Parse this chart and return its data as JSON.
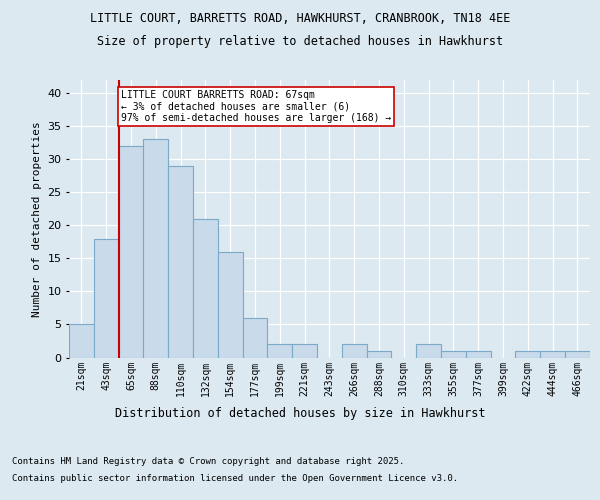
{
  "title1": "LITTLE COURT, BARRETTS ROAD, HAWKHURST, CRANBROOK, TN18 4EE",
  "title2": "Size of property relative to detached houses in Hawkhurst",
  "xlabel": "Distribution of detached houses by size in Hawkhurst",
  "ylabel": "Number of detached properties",
  "categories": [
    "21sqm",
    "43sqm",
    "65sqm",
    "88sqm",
    "110sqm",
    "132sqm",
    "154sqm",
    "177sqm",
    "199sqm",
    "221sqm",
    "243sqm",
    "266sqm",
    "288sqm",
    "310sqm",
    "333sqm",
    "355sqm",
    "377sqm",
    "399sqm",
    "422sqm",
    "444sqm",
    "466sqm"
  ],
  "values": [
    5,
    18,
    32,
    33,
    29,
    21,
    16,
    6,
    2,
    2,
    0,
    2,
    1,
    0,
    2,
    1,
    1,
    0,
    1,
    1,
    1
  ],
  "bar_color": "#c9daea",
  "bar_edge_color": "#7aaac8",
  "marker_line_color": "#cc0000",
  "annotation_box_color": "#ffffff",
  "annotation_box_edge": "#cc0000",
  "marker_label_line1": "LITTLE COURT BARRETTS ROAD: 67sqm",
  "marker_label_line2": "← 3% of detached houses are smaller (6)",
  "marker_label_line3": "97% of semi-detached houses are larger (168) →",
  "ylim": [
    0,
    42
  ],
  "yticks": [
    0,
    5,
    10,
    15,
    20,
    25,
    30,
    35,
    40
  ],
  "background_color": "#dce9f0",
  "plot_background": "#dce9f0",
  "grid_color": "#ffffff",
  "footer1": "Contains HM Land Registry data © Crown copyright and database right 2025.",
  "footer2": "Contains public sector information licensed under the Open Government Licence v3.0."
}
